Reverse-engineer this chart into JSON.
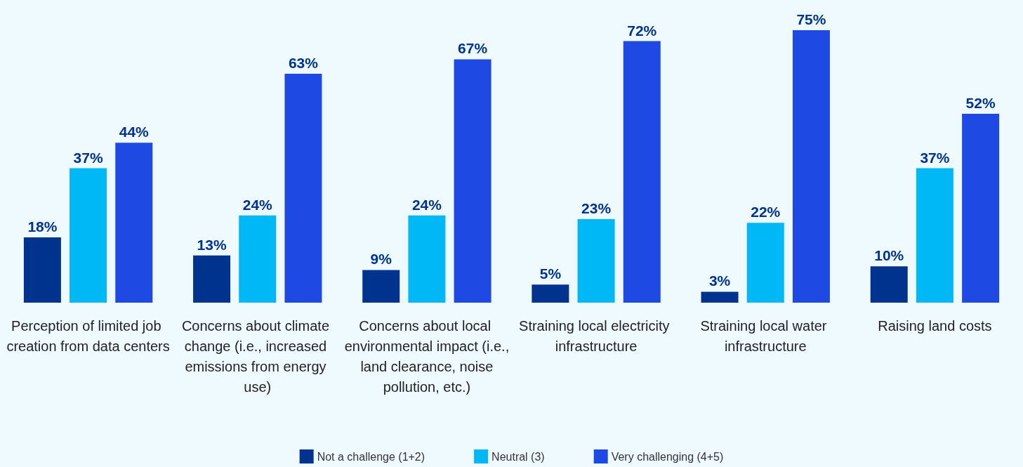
{
  "chart_data": {
    "type": "bar",
    "categories": [
      "Perception of limited job creation from data centers",
      "Concerns about climate change (i.e., increased emissions from energy use)",
      "Concerns about local environmental impact (i.e., land clearance, noise pollution, etc.)",
      "Straining local electricity infrastructure",
      "Straining local water infrastructure",
      "Raising land costs"
    ],
    "series": [
      {
        "name": "Not a challenge (1+2)",
        "color": "#00338d",
        "values": [
          18,
          13,
          9,
          5,
          3,
          10
        ],
        "value_labels": [
          "18%",
          "13%",
          "9%",
          "5%",
          "3%",
          "10%"
        ]
      },
      {
        "name": "Neutral (3)",
        "color": "#00b8f5",
        "values": [
          37,
          24,
          24,
          23,
          22,
          37
        ],
        "value_labels": [
          "37%",
          "24%",
          "24%",
          "23%",
          "22%",
          "37%"
        ]
      },
      {
        "name": "Very challenging (4+5)",
        "color": "#1e49e2",
        "values": [
          44,
          63,
          67,
          72,
          75,
          52
        ],
        "value_labels": [
          "44%",
          "63%",
          "67%",
          "72%",
          "75%",
          "52%"
        ]
      }
    ],
    "legend": "bottom",
    "grid": false
  }
}
